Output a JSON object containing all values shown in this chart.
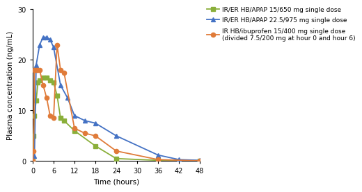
{
  "green_series": {
    "label": "IR/ER HB/APAP 15/650 mg single dose",
    "color": "#8AAF3A",
    "marker": "s",
    "x": [
      0,
      0.25,
      0.5,
      1,
      1.5,
      2,
      3,
      4,
      5,
      6,
      7,
      8,
      9,
      12,
      18,
      24,
      36,
      48
    ],
    "y": [
      0,
      5,
      9,
      12,
      15.5,
      16,
      16.5,
      16.5,
      16,
      15.5,
      13,
      8.5,
      8,
      6,
      3,
      0.5,
      0.15,
      0.1
    ]
  },
  "blue_series": {
    "label": "IR/ER HB/APAP 22.5/975 mg single dose",
    "color": "#4472C4",
    "marker": "^",
    "x": [
      0,
      0.5,
      1,
      2,
      3,
      4,
      5,
      6,
      8,
      10,
      12,
      15,
      18,
      24,
      36,
      42,
      48
    ],
    "y": [
      0,
      1,
      19,
      23,
      24.5,
      24.5,
      24,
      22.5,
      15,
      12.5,
      9,
      8.0,
      7.5,
      5,
      1.2,
      0.3,
      0.15
    ]
  },
  "orange_series": {
    "label": "IR HB/ibuprofen 15/400 mg single dose\n(divided 7.5/200 mg at hour 0 and hour 6)",
    "color": "#E07B39",
    "marker": "o",
    "x": [
      0,
      0.25,
      0.5,
      1,
      1.5,
      2,
      3,
      4,
      5,
      6,
      7,
      8,
      9,
      12,
      15,
      18,
      24,
      36,
      48
    ],
    "y": [
      0,
      2,
      18,
      18,
      18,
      18,
      15,
      12.5,
      9,
      8.5,
      23,
      18,
      17.5,
      6.5,
      5.5,
      5,
      2,
      0.3,
      0.05
    ]
  },
  "xlim": [
    0,
    48
  ],
  "ylim": [
    0,
    30
  ],
  "xticks": [
    0,
    6,
    12,
    18,
    24,
    30,
    36,
    42,
    48
  ],
  "yticks": [
    0,
    10,
    20,
    30
  ],
  "xlabel": "Time (hours)",
  "ylabel": "Plasma concentration (ng/mL)",
  "background_color": "#FFFFFF",
  "linewidth": 1.3,
  "markersize": 4.5
}
